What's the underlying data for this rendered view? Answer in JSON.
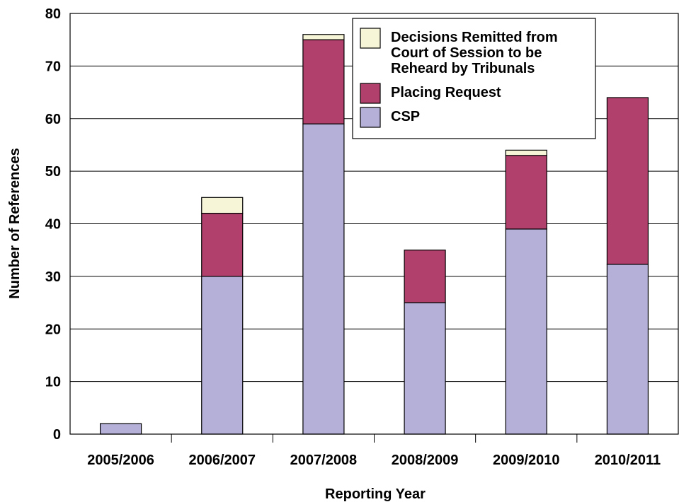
{
  "chart_data": {
    "type": "bar",
    "stacked": true,
    "xlabel": "Reporting Year",
    "ylabel": "Number of References",
    "ylim": [
      0,
      80
    ],
    "yticks": [
      0,
      10,
      20,
      30,
      40,
      50,
      60,
      70,
      80
    ],
    "grid": "horizontal",
    "legend_position": "top-right",
    "categories": [
      "2005/2006",
      "2006/2007",
      "2007/2008",
      "2008/2009",
      "2009/2010",
      "2010/2011"
    ],
    "series": [
      {
        "name": "CSP",
        "color": "#b4b0d8",
        "values": [
          2,
          30,
          59,
          25,
          39,
          32.3
        ]
      },
      {
        "name": "Placing Request",
        "color": "#b2406c",
        "values": [
          0,
          12,
          16,
          10,
          14,
          31.7
        ]
      },
      {
        "name": "Decisions Remitted from Court of Session to be Reheard by Tribunals",
        "color": "#f7f5d8",
        "values": [
          0,
          3,
          1,
          0,
          1,
          0
        ]
      }
    ],
    "legend": {
      "order": [
        2,
        1,
        0
      ],
      "lines": [
        [
          "Decisions Remitted from",
          "Court of Session to be",
          "Reheard by Tribunals"
        ],
        [
          "Placing Request"
        ],
        [
          "CSP"
        ]
      ]
    }
  }
}
